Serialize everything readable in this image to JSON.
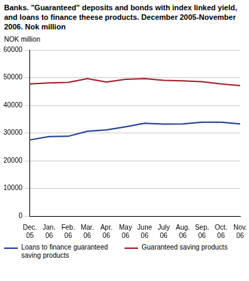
{
  "chart_data": {
    "type": "line",
    "title": "Banks. \"Guaranteed\" deposits and bonds with index linked yield, and loans to finance theese products. December 2005-November 2006. Nok million",
    "y_label": "NOK million",
    "categories": [
      "Dec. 05",
      "Jan. 06",
      "Feb. 06",
      "Mar. 06",
      "Apr. 06",
      "May 06",
      "June 06",
      "July 06",
      "Aug. 06",
      "Sep. 06",
      "Oct. 06",
      "Nov. 06"
    ],
    "series": [
      {
        "name": "Loans to finance guaranteed saving products",
        "color": "#1f3f8f",
        "values": [
          27500,
          28700,
          28800,
          30600,
          31100,
          32200,
          33500,
          33200,
          33300,
          33900,
          33900,
          33300
        ]
      },
      {
        "name": "Guaranteed saving products",
        "color": "#a3202b",
        "values": [
          47700,
          48100,
          48300,
          49600,
          48400,
          49400,
          49600,
          49000,
          48800,
          48500,
          47700,
          47100
        ]
      }
    ],
    "ylim": [
      0,
      60000
    ],
    "yticks": [
      0,
      10000,
      20000,
      30000,
      40000,
      50000,
      60000
    ],
    "grid": true,
    "legend": "bottom"
  }
}
